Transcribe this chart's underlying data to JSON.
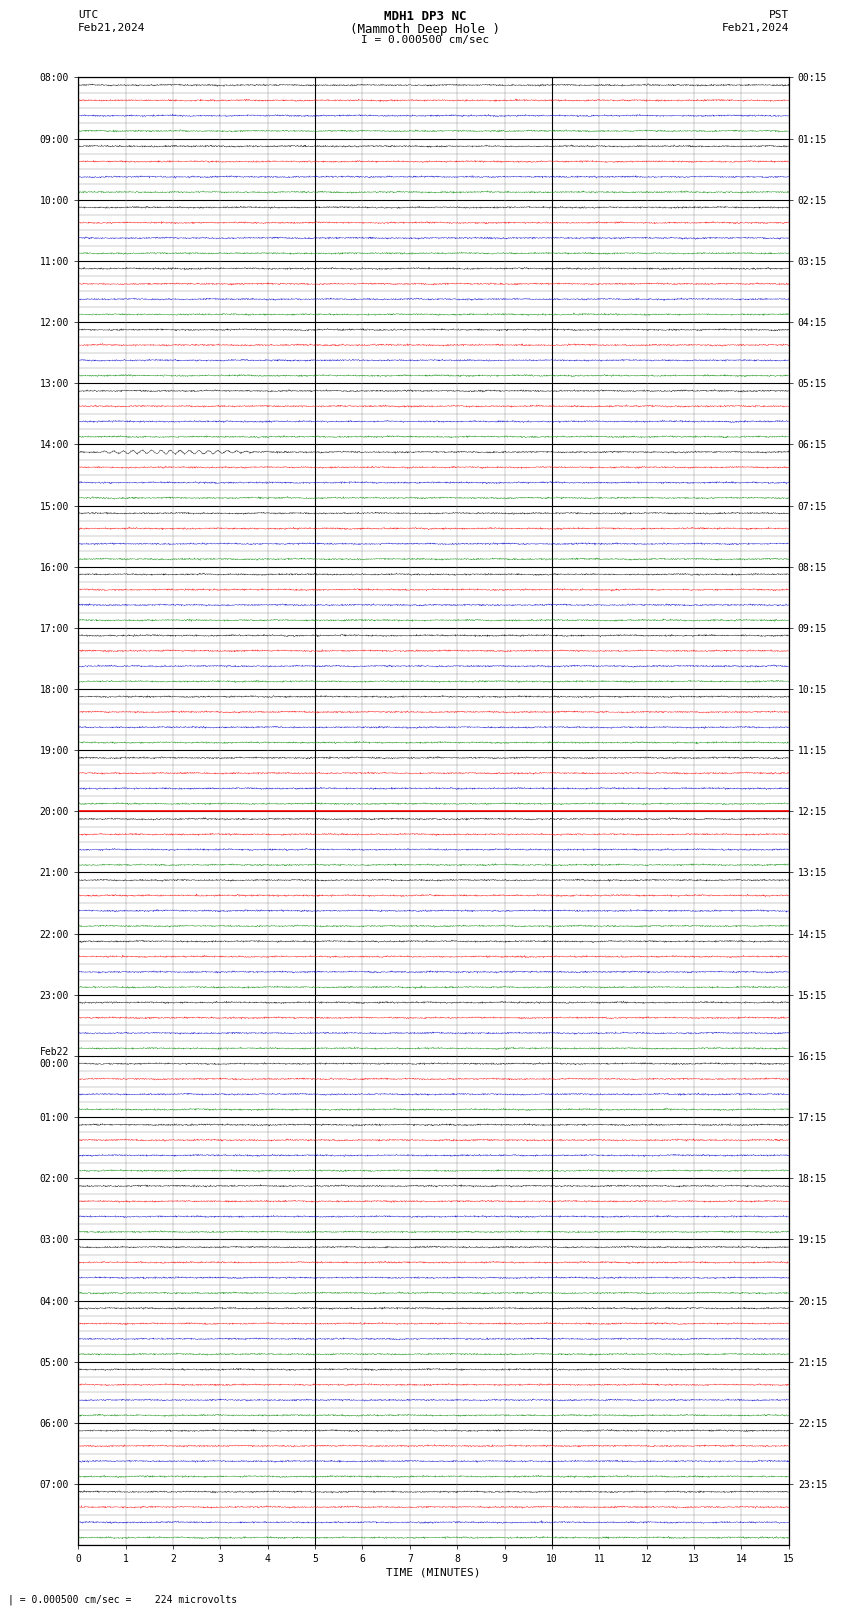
{
  "title_line1": "MDH1 DP3 NC",
  "title_line2": "(Mammoth Deep Hole )",
  "title_line3": "I = 0.000500 cm/sec",
  "left_label_line1": "UTC",
  "left_label_line2": "Feb21,2024",
  "right_label_line1": "PST",
  "right_label_line2": "Feb21,2024",
  "bottom_label": "TIME (MINUTES)",
  "bottom_note": "| = 0.000500 cm/sec =    224 microvolts",
  "utc_tick_positions": [
    0,
    4,
    8,
    12,
    16,
    20,
    24,
    28,
    32,
    36,
    40,
    44,
    48,
    52,
    56,
    60,
    64,
    68,
    72,
    76,
    80,
    84,
    88,
    92
  ],
  "utc_tick_labels": [
    "08:00",
    "09:00",
    "10:00",
    "11:00",
    "12:00",
    "13:00",
    "14:00",
    "15:00",
    "16:00",
    "17:00",
    "18:00",
    "19:00",
    "20:00",
    "21:00",
    "22:00",
    "23:00",
    "Feb22\n00:00",
    "01:00",
    "02:00",
    "03:00",
    "04:00",
    "05:00",
    "06:00",
    "07:00"
  ],
  "pst_tick_positions": [
    0,
    4,
    8,
    12,
    16,
    20,
    24,
    28,
    32,
    36,
    40,
    44,
    48,
    52,
    56,
    60,
    64,
    68,
    72,
    76,
    80,
    84,
    88,
    92
  ],
  "pst_tick_labels": [
    "00:15",
    "01:15",
    "02:15",
    "03:15",
    "04:15",
    "05:15",
    "06:15",
    "07:15",
    "08:15",
    "09:15",
    "10:15",
    "11:15",
    "12:15",
    "13:15",
    "14:15",
    "15:15",
    "16:15",
    "17:15",
    "18:15",
    "19:15",
    "20:15",
    "21:15",
    "22:15",
    "23:15"
  ],
  "n_rows": 96,
  "minutes_per_row": 15,
  "red_line_row": 48,
  "bg_color": "#ffffff",
  "grid_color": "#888888",
  "border_color": "#000000",
  "wave_colors": [
    "#000000",
    "#ff0000",
    "#0000cc",
    "#008800"
  ],
  "red_line_color": "#ff0000",
  "fig_width": 8.5,
  "fig_height": 16.13,
  "dpi": 100
}
